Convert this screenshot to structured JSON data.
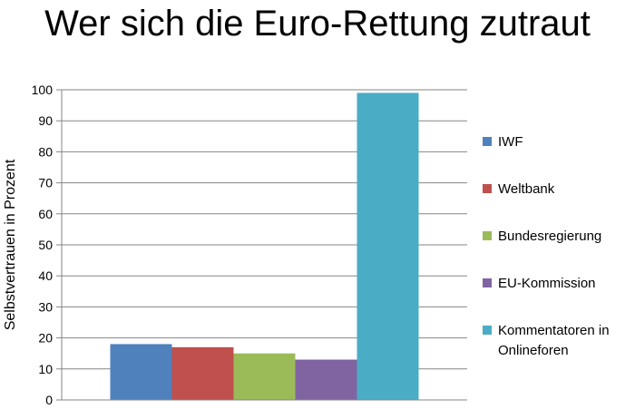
{
  "chart_data": {
    "type": "bar",
    "title": "Wer sich die Euro-Rettung zutraut",
    "xlabel": "",
    "ylabel": "Selbstvertrauen in Prozent",
    "ylim": [
      0,
      100
    ],
    "yticks": [
      0,
      10,
      20,
      30,
      40,
      50,
      60,
      70,
      80,
      90,
      100
    ],
    "grid": true,
    "legend_position": "right",
    "series": [
      {
        "name": "IWF",
        "value": 18,
        "color": "#4F81BD"
      },
      {
        "name": "Weltbank",
        "value": 17,
        "color": "#C0504D"
      },
      {
        "name": "Bundesregierung",
        "value": 15,
        "color": "#9BBB59"
      },
      {
        "name": "EU-Kommission",
        "value": 13,
        "color": "#8064A2"
      },
      {
        "name": "Kommentatoren in Onlineforen",
        "value": 99,
        "color": "#4BACC6"
      }
    ]
  }
}
